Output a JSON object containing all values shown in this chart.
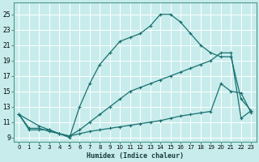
{
  "xlabel": "Humidex (Indice chaleur)",
  "bg_color": "#c8ecec",
  "grid_color": "#ffffff",
  "line_color": "#1a7070",
  "xlim": [
    -0.5,
    23.5
  ],
  "ylim": [
    8.5,
    26.5
  ],
  "xticks": [
    0,
    1,
    2,
    3,
    4,
    5,
    6,
    7,
    8,
    9,
    10,
    11,
    12,
    13,
    14,
    15,
    16,
    17,
    18,
    19,
    20,
    21,
    22,
    23
  ],
  "yticks": [
    9,
    11,
    13,
    15,
    17,
    19,
    21,
    23,
    25
  ],
  "line_top_x": [
    0,
    1,
    2,
    3,
    4,
    5,
    6,
    7,
    8,
    9,
    10,
    11,
    12,
    13,
    14,
    15,
    16,
    17,
    18,
    19,
    20,
    21,
    22,
    23
  ],
  "line_top_y": [
    12,
    10,
    10,
    10,
    9.5,
    9,
    13,
    16,
    18.5,
    20,
    21.5,
    22,
    22.5,
    23.5,
    25,
    25,
    24,
    22.5,
    21,
    20,
    19.5,
    19.5,
    14,
    12.5
  ],
  "line_mid_x": [
    0,
    2,
    3,
    4,
    5,
    6,
    7,
    8,
    9,
    10,
    11,
    12,
    13,
    14,
    15,
    16,
    17,
    18,
    19,
    20,
    21,
    22,
    23
  ],
  "line_mid_y": [
    12,
    10.5,
    10,
    9.5,
    9.2,
    10,
    11,
    12,
    13,
    14,
    15,
    15.5,
    16,
    16.5,
    17,
    17.5,
    18,
    18.5,
    19,
    20,
    20,
    11.5,
    12.5
  ],
  "line_bot_x": [
    0,
    1,
    2,
    3,
    4,
    5,
    6,
    7,
    8,
    9,
    10,
    11,
    12,
    13,
    14,
    15,
    16,
    17,
    18,
    19,
    20,
    21,
    22,
    23
  ],
  "line_bot_y": [
    12,
    10.2,
    10.2,
    9.8,
    9.5,
    9.2,
    9.5,
    9.8,
    10,
    10.2,
    10.4,
    10.6,
    10.8,
    11,
    11.2,
    11.5,
    11.8,
    12,
    12.2,
    12.4,
    16,
    15,
    14.8,
    12.2
  ]
}
